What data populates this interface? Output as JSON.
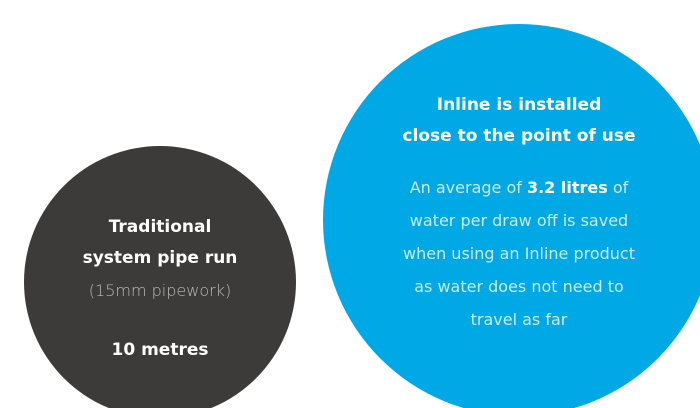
{
  "traditional": {
    "title_lines": [
      "Traditional",
      "system pipe run"
    ],
    "note": "(15mm pipework)",
    "length": "10 metres"
  },
  "inline": {
    "title_lines": [
      "Inline is installed",
      "close to the point of use"
    ],
    "body_first": {
      "before": "An average of ",
      "bold": "3.2 litres",
      "after": " of"
    },
    "body_lines": [
      "water per draw off is saved",
      "when using an Inline product",
      "as water does not need to",
      "travel as far"
    ]
  }
}
